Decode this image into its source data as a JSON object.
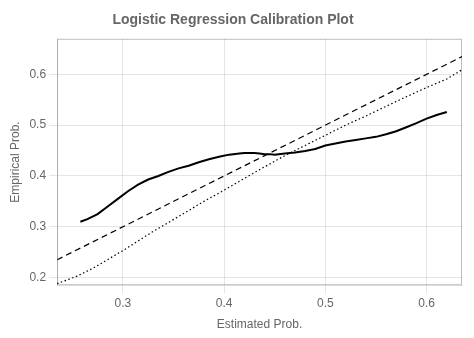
{
  "chart_data": {
    "type": "line",
    "title": "Logistic Regression Calibration Plot",
    "xlabel": "Estimated Prob.",
    "ylabel": "Empirical Prob.",
    "xlim": [
      0.235,
      0.635
    ],
    "ylim": [
      0.185,
      0.67
    ],
    "xticks": [
      0.3,
      0.4,
      0.5,
      0.6
    ],
    "yticks": [
      0.2,
      0.3,
      0.4,
      0.5,
      0.6
    ],
    "grid": true,
    "series": [
      {
        "x": [
          0.235,
          0.635
        ],
        "values": [
          0.235,
          0.635
        ],
        "color": "#000000",
        "line_style": "dashed"
      },
      {
        "x": [
          0.235,
          0.255,
          0.27,
          0.3,
          0.33,
          0.36,
          0.38,
          0.4,
          0.42,
          0.44,
          0.46,
          0.48,
          0.5,
          0.52,
          0.54,
          0.56,
          0.58,
          0.6,
          0.62,
          0.635
        ],
        "values": [
          0.188,
          0.203,
          0.218,
          0.253,
          0.291,
          0.326,
          0.35,
          0.372,
          0.395,
          0.418,
          0.44,
          0.46,
          0.48,
          0.5,
          0.518,
          0.537,
          0.556,
          0.574,
          0.591,
          0.609
        ],
        "color": "#000000",
        "line_style": "dotted"
      },
      {
        "x": [
          0.258,
          0.265,
          0.275,
          0.285,
          0.295,
          0.305,
          0.315,
          0.325,
          0.335,
          0.345,
          0.355,
          0.365,
          0.375,
          0.385,
          0.395,
          0.405,
          0.415,
          0.42,
          0.425,
          0.43,
          0.435,
          0.44,
          0.445,
          0.45,
          0.46,
          0.47,
          0.48,
          0.49,
          0.5,
          0.51,
          0.52,
          0.53,
          0.54,
          0.55,
          0.56,
          0.57,
          0.58,
          0.59,
          0.6,
          0.61,
          0.62
        ],
        "values": [
          0.31,
          0.315,
          0.325,
          0.34,
          0.355,
          0.37,
          0.383,
          0.393,
          0.4,
          0.408,
          0.415,
          0.42,
          0.427,
          0.433,
          0.438,
          0.442,
          0.444,
          0.445,
          0.445,
          0.445,
          0.444,
          0.443,
          0.443,
          0.442,
          0.444,
          0.446,
          0.449,
          0.453,
          0.46,
          0.464,
          0.468,
          0.471,
          0.474,
          0.477,
          0.482,
          0.488,
          0.496,
          0.504,
          0.513,
          0.52,
          0.526
        ],
        "color": "#000000",
        "line_style": "solid"
      }
    ]
  }
}
